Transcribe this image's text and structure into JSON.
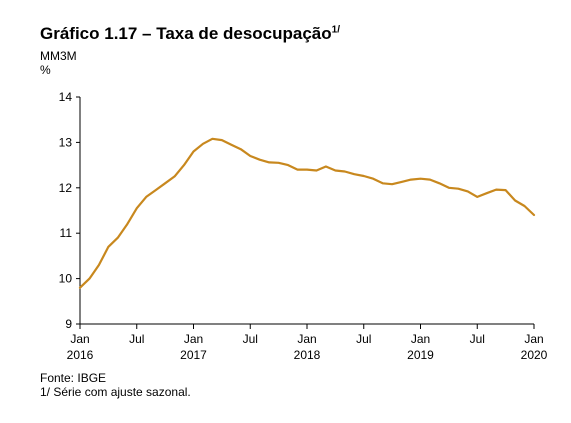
{
  "header": {
    "title": "Gráfico 1.17 – Taxa de desocupação",
    "title_note": "1/",
    "subtitle": "MM3M",
    "unit": "%"
  },
  "footer": {
    "source": "Fonte: IBGE",
    "note": "1/ Série com ajuste sazonal."
  },
  "chart_data": {
    "type": "line",
    "title": "Gráfico 1.17 – Taxa de desocupação",
    "subtitle": "MM3M",
    "ylabel": "%",
    "ylim": [
      9,
      14
    ],
    "yticks": [
      9,
      10,
      11,
      12,
      13,
      14
    ],
    "grid": false,
    "line_color": "#C8881E",
    "x_ticks": [
      {
        "month_index": 0,
        "line1": "Jan",
        "line2": "2016"
      },
      {
        "month_index": 6,
        "line1": "Jul",
        "line2": ""
      },
      {
        "month_index": 12,
        "line1": "Jan",
        "line2": "2017"
      },
      {
        "month_index": 18,
        "line1": "Jul",
        "line2": ""
      },
      {
        "month_index": 24,
        "line1": "Jan",
        "line2": "2018"
      },
      {
        "month_index": 30,
        "line1": "Jul",
        "line2": ""
      },
      {
        "month_index": 36,
        "line1": "Jan",
        "line2": "2019"
      },
      {
        "month_index": 42,
        "line1": "Jul",
        "line2": ""
      },
      {
        "month_index": 48,
        "line1": "Jan",
        "line2": "2020"
      }
    ],
    "series": [
      {
        "x": [
          "2016-01",
          "2016-02",
          "2016-03",
          "2016-04",
          "2016-05",
          "2016-06",
          "2016-07",
          "2016-08",
          "2016-09",
          "2016-10",
          "2016-11",
          "2016-12",
          "2017-01",
          "2017-02",
          "2017-03",
          "2017-04",
          "2017-05",
          "2017-06",
          "2017-07",
          "2017-08",
          "2017-09",
          "2017-10",
          "2017-11",
          "2017-12",
          "2018-01",
          "2018-02",
          "2018-03",
          "2018-04",
          "2018-05",
          "2018-06",
          "2018-07",
          "2018-08",
          "2018-09",
          "2018-10",
          "2018-11",
          "2018-12",
          "2019-01",
          "2019-02",
          "2019-03",
          "2019-04",
          "2019-05",
          "2019-06",
          "2019-07",
          "2019-08",
          "2019-09",
          "2019-10",
          "2019-11",
          "2019-12",
          "2020-01"
        ],
        "values": [
          9.8,
          10.0,
          10.3,
          10.7,
          10.9,
          11.2,
          11.55,
          11.8,
          11.95,
          12.1,
          12.25,
          12.5,
          12.8,
          12.97,
          13.08,
          13.05,
          12.95,
          12.85,
          12.7,
          12.62,
          12.56,
          12.55,
          12.5,
          12.4,
          12.4,
          12.38,
          12.47,
          12.38,
          12.36,
          12.3,
          12.26,
          12.2,
          12.1,
          12.08,
          12.13,
          12.18,
          12.2,
          12.18,
          12.1,
          12.0,
          11.98,
          11.92,
          11.8,
          11.88,
          11.96,
          11.95,
          11.72,
          11.6,
          11.4
        ]
      }
    ]
  }
}
